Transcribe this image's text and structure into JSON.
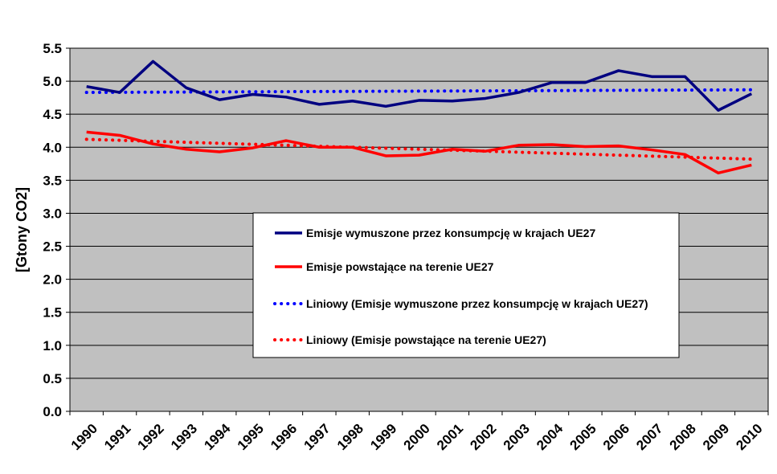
{
  "chart_data": {
    "type": "line",
    "ylabel": "[Gtony CO2]",
    "xlabel": "",
    "title": "",
    "ylim": [
      0,
      5.5
    ],
    "ytick_step": 0.5,
    "y_ticks": [
      "0.0",
      "0.5",
      "1.0",
      "1.5",
      "2.0",
      "2.5",
      "3.0",
      "3.5",
      "4.0",
      "4.5",
      "5.0",
      "5.5"
    ],
    "grid": "horizontal",
    "legend_position": "center",
    "categories": [
      "1990",
      "1991",
      "1992",
      "1993",
      "1994",
      "1995",
      "1996",
      "1997",
      "1998",
      "1999",
      "2000",
      "2001",
      "2002",
      "2003",
      "2004",
      "2005",
      "2006",
      "2007",
      "2008",
      "2009",
      "2010"
    ],
    "series": [
      {
        "name": "Emisje wymuszone przez konsumpcję w krajach UE27",
        "style": "solid",
        "color": "#000080",
        "values": [
          4.92,
          4.83,
          5.3,
          4.9,
          4.72,
          4.8,
          4.76,
          4.65,
          4.7,
          4.62,
          4.71,
          4.7,
          4.74,
          4.83,
          4.98,
          4.98,
          5.16,
          5.07,
          5.07,
          4.56,
          4.81
        ]
      },
      {
        "name": "Emisje powstające na terenie UE27",
        "style": "solid",
        "color": "#ff0000",
        "values": [
          4.23,
          4.18,
          4.05,
          3.97,
          3.93,
          3.99,
          4.1,
          4.0,
          4.0,
          3.87,
          3.88,
          3.97,
          3.94,
          4.03,
          4.04,
          4.01,
          4.02,
          3.96,
          3.89,
          3.61,
          3.73
        ]
      },
      {
        "name": "Liniowy (Emisje wymuszone przez konsumpcję w krajach UE27)",
        "style": "dotted",
        "color": "#0000ff",
        "values": [
          4.83,
          4.832,
          4.834,
          4.836,
          4.838,
          4.84,
          4.842,
          4.844,
          4.846,
          4.848,
          4.85,
          4.852,
          4.854,
          4.856,
          4.858,
          4.86,
          4.862,
          4.864,
          4.866,
          4.868,
          4.87
        ]
      },
      {
        "name": "Liniowy (Emisje powstające na terenie UE27)",
        "style": "dotted",
        "color": "#ff0000",
        "values": [
          4.12,
          4.105,
          4.09,
          4.075,
          4.06,
          4.045,
          4.03,
          4.015,
          4.0,
          3.985,
          3.97,
          3.955,
          3.94,
          3.925,
          3.91,
          3.895,
          3.88,
          3.865,
          3.85,
          3.835,
          3.82
        ]
      }
    ]
  }
}
